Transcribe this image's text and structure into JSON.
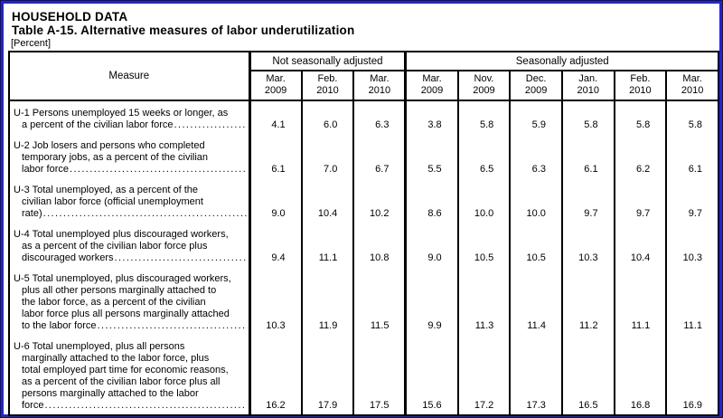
{
  "page": {
    "section_title": "HOUSEHOLD DATA",
    "table_title": "Table A-15. Alternative measures of labor underutilization",
    "unit_note": "[Percent]"
  },
  "colors": {
    "frame_blue": "#2323d0",
    "table_border": "#010101",
    "text": "#010101",
    "background": "#ffffff"
  },
  "table": {
    "measure_header": "Measure",
    "groups": [
      {
        "label": "Not seasonally adjusted",
        "col_count": 3
      },
      {
        "label": "Seasonally adjusted",
        "col_count": 6
      }
    ],
    "columns": [
      {
        "month": "Mar.",
        "year": "2009"
      },
      {
        "month": "Feb.",
        "year": "2010"
      },
      {
        "month": "Mar.",
        "year": "2010"
      },
      {
        "month": "Mar.",
        "year": "2009"
      },
      {
        "month": "Nov.",
        "year": "2009"
      },
      {
        "month": "Dec.",
        "year": "2009"
      },
      {
        "month": "Jan.",
        "year": "2010"
      },
      {
        "month": "Feb.",
        "year": "2010"
      },
      {
        "month": "Mar.",
        "year": "2010"
      }
    ],
    "rows": [
      {
        "id": "U-1",
        "measure_lines": [
          "U-1 Persons unemployed 15 weeks or longer, as",
          "a percent of the civilian labor force"
        ],
        "values": [
          "4.1",
          "6.0",
          "6.3",
          "3.8",
          "5.8",
          "5.9",
          "5.8",
          "5.8",
          "5.8"
        ]
      },
      {
        "id": "U-2",
        "measure_lines": [
          "U-2 Job losers and persons who completed",
          "temporary jobs, as a percent of the civilian",
          "labor force"
        ],
        "values": [
          "6.1",
          "7.0",
          "6.7",
          "5.5",
          "6.5",
          "6.3",
          "6.1",
          "6.2",
          "6.1"
        ]
      },
      {
        "id": "U-3",
        "measure_lines": [
          "U-3 Total unemployed, as a percent of the",
          "civilian labor force (official unemployment",
          "rate)"
        ],
        "values": [
          "9.0",
          "10.4",
          "10.2",
          "8.6",
          "10.0",
          "10.0",
          "9.7",
          "9.7",
          "9.7"
        ]
      },
      {
        "id": "U-4",
        "measure_lines": [
          "U-4 Total unemployed plus discouraged workers,",
          "as a percent of the civilian labor force plus",
          "discouraged workers"
        ],
        "values": [
          "9.4",
          "11.1",
          "10.8",
          "9.0",
          "10.5",
          "10.5",
          "10.3",
          "10.4",
          "10.3"
        ]
      },
      {
        "id": "U-5",
        "measure_lines": [
          "U-5 Total unemployed, plus discouraged workers,",
          "plus all other persons marginally attached to",
          "the labor force, as a percent of the civilian",
          "labor force plus all persons marginally attached",
          "to the labor force"
        ],
        "values": [
          "10.3",
          "11.9",
          "11.5",
          "9.9",
          "11.3",
          "11.4",
          "11.2",
          "11.1",
          "11.1"
        ]
      },
      {
        "id": "U-6",
        "measure_lines": [
          "U-6 Total unemployed, plus all persons",
          "marginally attached to the labor force, plus",
          "total employed part time for economic reasons,",
          "as a percent of the civilian labor force plus all",
          "persons marginally attached to the labor",
          "force"
        ],
        "values": [
          "16.2",
          "17.9",
          "17.5",
          "15.6",
          "17.2",
          "17.3",
          "16.5",
          "16.8",
          "16.9"
        ]
      }
    ]
  }
}
